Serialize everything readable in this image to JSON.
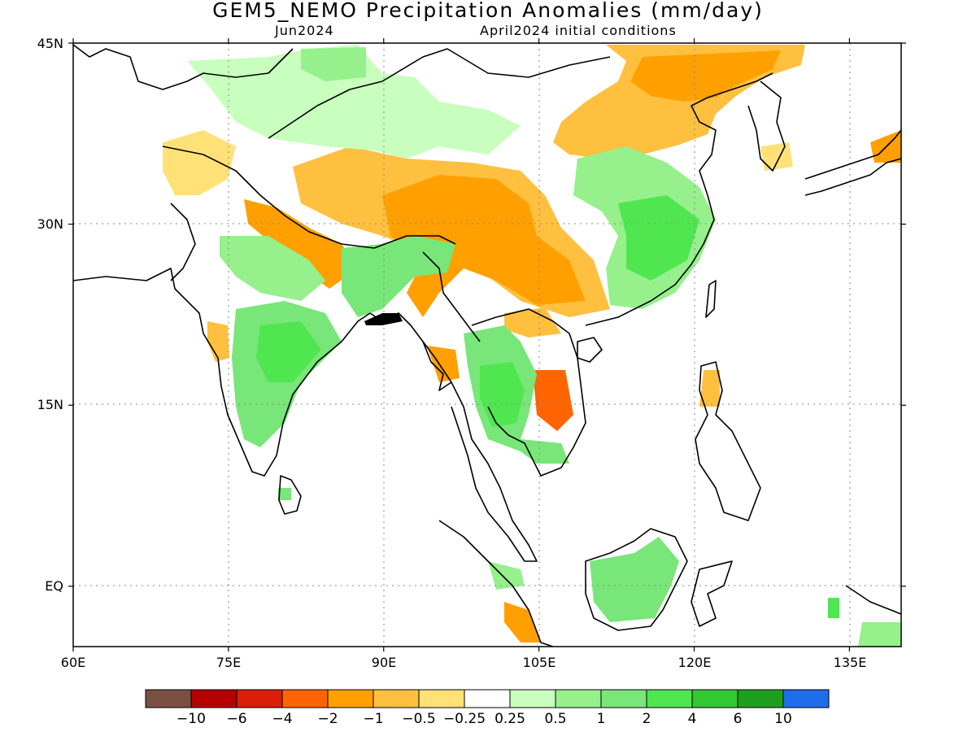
{
  "title": "GEM5_NEMO Precipitation Anomalies (mm/day)",
  "subtitle_left": "Jun2024",
  "subtitle_right": "April2024 initial conditions",
  "axes": {
    "lon_ticks": [
      {
        "value": 60,
        "label": "60E"
      },
      {
        "value": 75,
        "label": "75E"
      },
      {
        "value": 90,
        "label": "90E"
      },
      {
        "value": 105,
        "label": "105E"
      },
      {
        "value": 120,
        "label": "120E"
      },
      {
        "value": 135,
        "label": "135E"
      }
    ],
    "lat_ticks": [
      {
        "value": 45,
        "label": "45N"
      },
      {
        "value": 30,
        "label": "30N"
      },
      {
        "value": 15,
        "label": "15N"
      },
      {
        "value": 0,
        "label": "EQ"
      }
    ],
    "lon_range": [
      60,
      140
    ],
    "lat_range": [
      -5,
      45
    ],
    "grid": true
  },
  "colorbar": {
    "colors": [
      "#7a5043",
      "#b40000",
      "#dc1e0a",
      "#ff6400",
      "#ffa000",
      "#ffc040",
      "#ffe178",
      "#ffffff",
      "#c8ffbe",
      "#96f08c",
      "#78e678",
      "#50e650",
      "#32c832",
      "#1ea01e",
      "#1e6eeb"
    ],
    "labels": [
      "−10",
      "−6",
      "−4",
      "−2",
      "−1",
      "−0.5",
      "−0.25",
      "0.25",
      "0.5",
      "1",
      "2",
      "4",
      "6",
      "10"
    ]
  },
  "legend_colors": {
    "dry_strong": "#ff6400",
    "dry": "#ffa000",
    "dry_light": "#ffc040",
    "dry_faint": "#ffe178",
    "wet_faint": "#c8ffbe",
    "wet_light": "#96f08c",
    "wet": "#78e678",
    "wet_strong": "#50e650"
  }
}
